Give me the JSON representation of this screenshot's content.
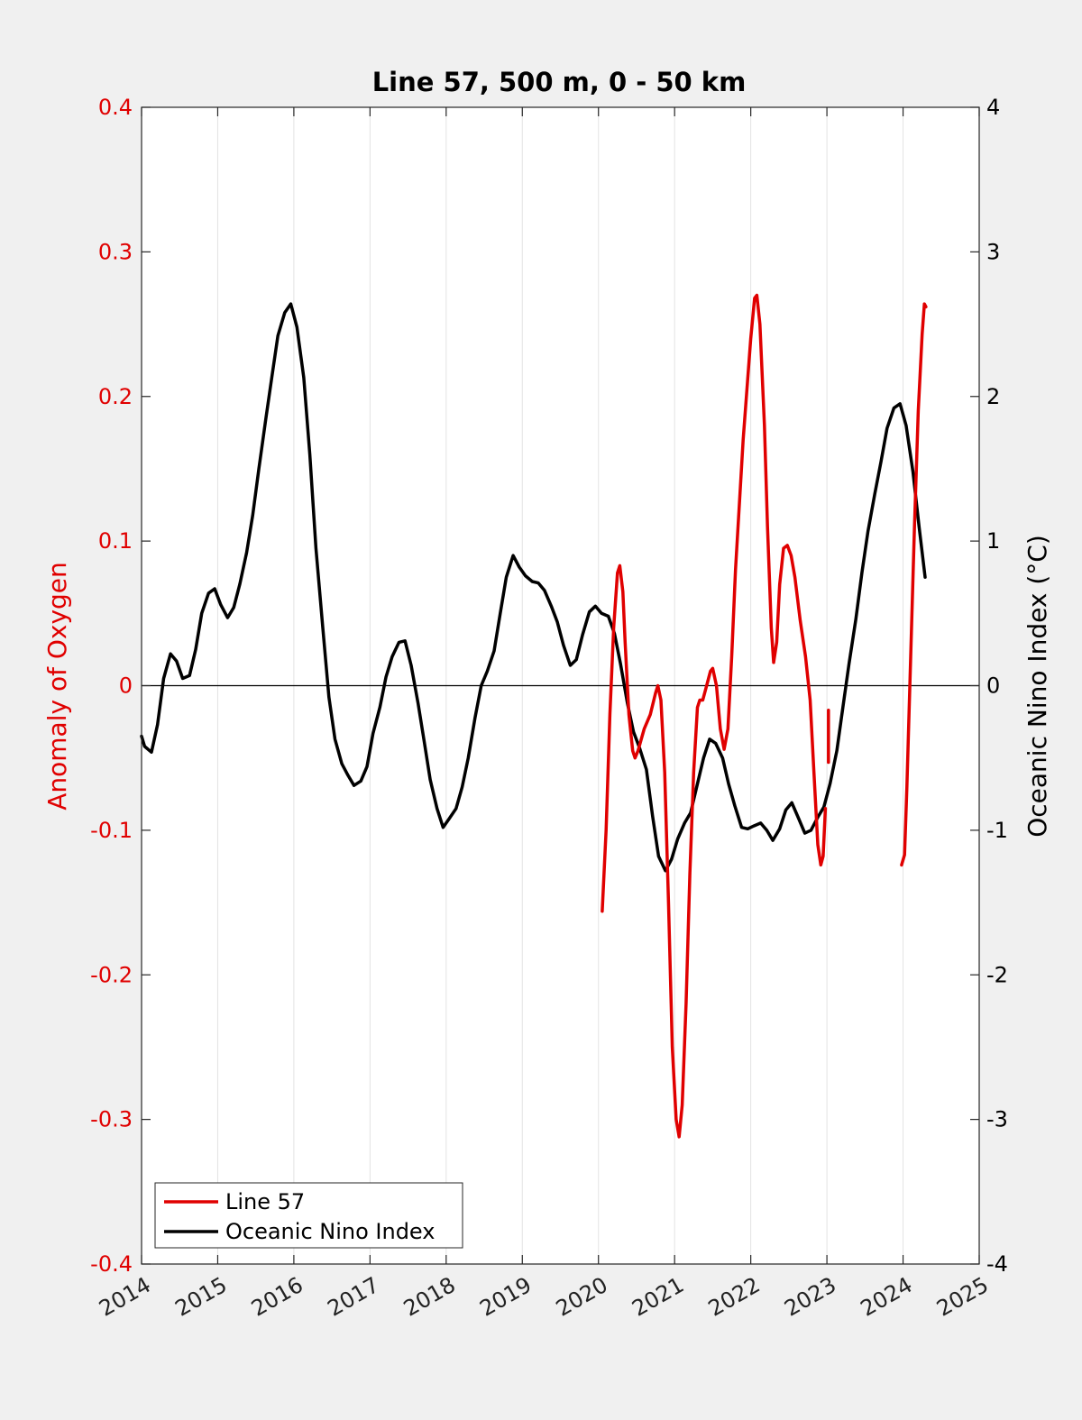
{
  "chart_data": {
    "type": "line",
    "title": "Line 57, 500 m, 0 - 50 km",
    "xlabel": "",
    "ylabel_left": "Anomaly of Oxygen",
    "ylabel_right": "Oceanic Nino Index (°C)",
    "xlim": [
      2014,
      2025
    ],
    "ylim_left": [
      -0.4,
      0.4
    ],
    "ylim_right": [
      -4,
      4
    ],
    "x_ticks": [
      "2014",
      "2015",
      "2016",
      "2017",
      "2018",
      "2019",
      "2020",
      "2021",
      "2022",
      "2023",
      "2024",
      "2025"
    ],
    "y_ticks_left": [
      "-0.4",
      "-0.3",
      "-0.2",
      "-0.1",
      "0",
      "0.1",
      "0.2",
      "0.3",
      "0.4"
    ],
    "y_ticks_right": [
      "-4",
      "-3",
      "-2",
      "-1",
      "0",
      "1",
      "2",
      "3",
      "4"
    ],
    "grid": "vertical",
    "zero_line": true,
    "legend_position": "bottom-left",
    "colors": {
      "line57": "#e00000",
      "oni": "#000000",
      "left_axis": "#e00000",
      "right_axis": "#000000"
    },
    "series": [
      {
        "name": "Line 57",
        "axis": "left",
        "segments": [
          [
            [
              2020.05,
              -0.156
            ],
            [
              2020.1,
              -0.1
            ],
            [
              2020.15,
              -0.02
            ],
            [
              2020.2,
              0.04
            ],
            [
              2020.25,
              0.078
            ],
            [
              2020.28,
              0.083
            ],
            [
              2020.32,
              0.065
            ],
            [
              2020.35,
              0.03
            ],
            [
              2020.4,
              -0.02
            ],
            [
              2020.45,
              -0.045
            ],
            [
              2020.48,
              -0.05
            ],
            [
              2020.52,
              -0.045
            ],
            [
              2020.6,
              -0.03
            ],
            [
              2020.68,
              -0.02
            ],
            [
              2020.75,
              -0.005
            ],
            [
              2020.78,
              0.0
            ],
            [
              2020.82,
              -0.01
            ],
            [
              2020.87,
              -0.06
            ],
            [
              2020.92,
              -0.15
            ],
            [
              2020.97,
              -0.25
            ],
            [
              2021.02,
              -0.3
            ],
            [
              2021.06,
              -0.312
            ],
            [
              2021.1,
              -0.29
            ],
            [
              2021.15,
              -0.22
            ],
            [
              2021.2,
              -0.13
            ],
            [
              2021.25,
              -0.06
            ],
            [
              2021.3,
              -0.015
            ],
            [
              2021.33,
              -0.01
            ],
            [
              2021.37,
              -0.01
            ],
            [
              2021.42,
              0.0
            ],
            [
              2021.47,
              0.01
            ],
            [
              2021.5,
              0.012
            ],
            [
              2021.55,
              0.0
            ],
            [
              2021.6,
              -0.03
            ],
            [
              2021.65,
              -0.044
            ],
            [
              2021.7,
              -0.03
            ],
            [
              2021.75,
              0.02
            ],
            [
              2021.8,
              0.08
            ],
            [
              2021.9,
              0.17
            ],
            [
              2022.0,
              0.24
            ],
            [
              2022.05,
              0.268
            ],
            [
              2022.08,
              0.27
            ],
            [
              2022.12,
              0.25
            ],
            [
              2022.18,
              0.18
            ],
            [
              2022.22,
              0.11
            ],
            [
              2022.27,
              0.04
            ],
            [
              2022.3,
              0.016
            ],
            [
              2022.34,
              0.03
            ],
            [
              2022.38,
              0.07
            ],
            [
              2022.43,
              0.095
            ],
            [
              2022.48,
              0.097
            ],
            [
              2022.53,
              0.09
            ],
            [
              2022.58,
              0.075
            ],
            [
              2022.65,
              0.045
            ],
            [
              2022.72,
              0.02
            ],
            [
              2022.78,
              -0.01
            ],
            [
              2022.83,
              -0.06
            ],
            [
              2022.88,
              -0.11
            ],
            [
              2022.92,
              -0.124
            ],
            [
              2022.95,
              -0.118
            ],
            [
              2022.98,
              -0.085
            ]
          ],
          [
            [
              2023.02,
              -0.053
            ],
            [
              2023.02,
              -0.017
            ]
          ],
          [
            [
              2023.98,
              -0.124
            ],
            [
              2024.02,
              -0.117
            ],
            [
              2024.05,
              -0.07
            ],
            [
              2024.1,
              0.02
            ],
            [
              2024.15,
              0.11
            ],
            [
              2024.2,
              0.19
            ],
            [
              2024.25,
              0.243
            ],
            [
              2024.28,
              0.264
            ],
            [
              2024.3,
              0.262
            ]
          ]
        ]
      },
      {
        "name": "Oceanic Nino Index",
        "axis": "right",
        "values": [
          [
            2014.0,
            -0.35
          ],
          [
            2014.04,
            -0.42
          ],
          [
            2014.13,
            -0.46
          ],
          [
            2014.21,
            -0.27
          ],
          [
            2014.29,
            0.05
          ],
          [
            2014.38,
            0.22
          ],
          [
            2014.46,
            0.17
          ],
          [
            2014.54,
            0.05
          ],
          [
            2014.63,
            0.07
          ],
          [
            2014.71,
            0.25
          ],
          [
            2014.79,
            0.5
          ],
          [
            2014.88,
            0.64
          ],
          [
            2014.96,
            0.67
          ],
          [
            2015.04,
            0.56
          ],
          [
            2015.13,
            0.47
          ],
          [
            2015.21,
            0.54
          ],
          [
            2015.29,
            0.7
          ],
          [
            2015.38,
            0.92
          ],
          [
            2015.46,
            1.18
          ],
          [
            2015.54,
            1.5
          ],
          [
            2015.63,
            1.84
          ],
          [
            2015.71,
            2.13
          ],
          [
            2015.79,
            2.42
          ],
          [
            2015.88,
            2.58
          ],
          [
            2015.96,
            2.64
          ],
          [
            2016.04,
            2.48
          ],
          [
            2016.13,
            2.13
          ],
          [
            2016.21,
            1.6
          ],
          [
            2016.29,
            0.95
          ],
          [
            2016.38,
            0.4
          ],
          [
            2016.46,
            -0.08
          ],
          [
            2016.54,
            -0.37
          ],
          [
            2016.63,
            -0.54
          ],
          [
            2016.71,
            -0.62
          ],
          [
            2016.79,
            -0.69
          ],
          [
            2016.88,
            -0.66
          ],
          [
            2016.96,
            -0.56
          ],
          [
            2017.04,
            -0.33
          ],
          [
            2017.13,
            -0.15
          ],
          [
            2017.21,
            0.06
          ],
          [
            2017.29,
            0.2
          ],
          [
            2017.38,
            0.3
          ],
          [
            2017.46,
            0.31
          ],
          [
            2017.54,
            0.14
          ],
          [
            2017.63,
            -0.12
          ],
          [
            2017.71,
            -0.38
          ],
          [
            2017.79,
            -0.65
          ],
          [
            2017.88,
            -0.85
          ],
          [
            2017.96,
            -0.98
          ],
          [
            2018.04,
            -0.92
          ],
          [
            2018.13,
            -0.85
          ],
          [
            2018.21,
            -0.7
          ],
          [
            2018.29,
            -0.5
          ],
          [
            2018.38,
            -0.22
          ],
          [
            2018.46,
            0.0
          ],
          [
            2018.54,
            0.1
          ],
          [
            2018.63,
            0.24
          ],
          [
            2018.71,
            0.5
          ],
          [
            2018.79,
            0.75
          ],
          [
            2018.88,
            0.9
          ],
          [
            2018.96,
            0.82
          ],
          [
            2019.04,
            0.76
          ],
          [
            2019.13,
            0.72
          ],
          [
            2019.21,
            0.71
          ],
          [
            2019.29,
            0.66
          ],
          [
            2019.38,
            0.55
          ],
          [
            2019.46,
            0.44
          ],
          [
            2019.54,
            0.28
          ],
          [
            2019.63,
            0.14
          ],
          [
            2019.71,
            0.18
          ],
          [
            2019.79,
            0.35
          ],
          [
            2019.88,
            0.51
          ],
          [
            2019.96,
            0.55
          ],
          [
            2020.04,
            0.5
          ],
          [
            2020.13,
            0.48
          ],
          [
            2020.21,
            0.36
          ],
          [
            2020.29,
            0.15
          ],
          [
            2020.38,
            -0.12
          ],
          [
            2020.46,
            -0.32
          ],
          [
            2020.54,
            -0.43
          ],
          [
            2020.63,
            -0.58
          ],
          [
            2020.71,
            -0.9
          ],
          [
            2020.79,
            -1.18
          ],
          [
            2020.88,
            -1.28
          ],
          [
            2020.96,
            -1.2
          ],
          [
            2021.04,
            -1.06
          ],
          [
            2021.13,
            -0.95
          ],
          [
            2021.21,
            -0.88
          ],
          [
            2021.29,
            -0.7
          ],
          [
            2021.38,
            -0.5
          ],
          [
            2021.46,
            -0.37
          ],
          [
            2021.54,
            -0.4
          ],
          [
            2021.63,
            -0.5
          ],
          [
            2021.71,
            -0.68
          ],
          [
            2021.79,
            -0.83
          ],
          [
            2021.88,
            -0.98
          ],
          [
            2021.96,
            -0.99
          ],
          [
            2022.04,
            -0.97
          ],
          [
            2022.13,
            -0.95
          ],
          [
            2022.21,
            -1.0
          ],
          [
            2022.29,
            -1.07
          ],
          [
            2022.38,
            -0.99
          ],
          [
            2022.46,
            -0.86
          ],
          [
            2022.54,
            -0.81
          ],
          [
            2022.63,
            -0.92
          ],
          [
            2022.71,
            -1.02
          ],
          [
            2022.79,
            -1.0
          ],
          [
            2022.88,
            -0.91
          ],
          [
            2022.96,
            -0.84
          ],
          [
            2023.04,
            -0.68
          ],
          [
            2023.13,
            -0.45
          ],
          [
            2023.21,
            -0.15
          ],
          [
            2023.29,
            0.15
          ],
          [
            2023.38,
            0.46
          ],
          [
            2023.46,
            0.78
          ],
          [
            2023.54,
            1.07
          ],
          [
            2023.63,
            1.33
          ],
          [
            2023.71,
            1.55
          ],
          [
            2023.79,
            1.78
          ],
          [
            2023.88,
            1.92
          ],
          [
            2023.96,
            1.95
          ],
          [
            2024.04,
            1.8
          ],
          [
            2024.13,
            1.48
          ],
          [
            2024.21,
            1.1
          ],
          [
            2024.29,
            0.75
          ]
        ]
      }
    ]
  }
}
